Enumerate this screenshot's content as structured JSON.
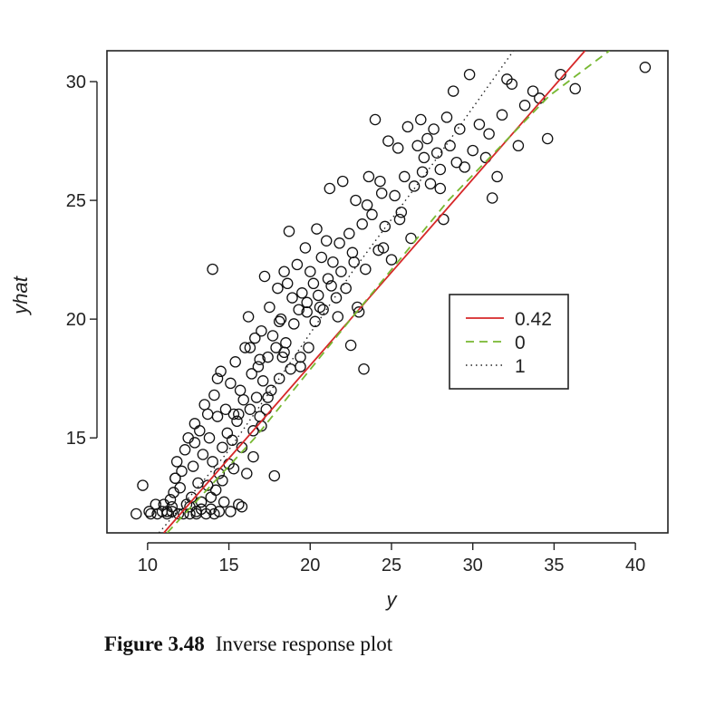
{
  "chart_data": {
    "type": "scatter",
    "title": "",
    "xlabel": "y",
    "ylabel": "yhat",
    "xlim": [
      7.5,
      42
    ],
    "ylim": [
      11,
      31.3
    ],
    "x_ticks": [
      10,
      15,
      20,
      25,
      30,
      35,
      40
    ],
    "y_ticks": [
      15,
      20,
      25,
      30
    ],
    "grid": false,
    "legend_position": "center-right",
    "point_style": "open-circle",
    "series": [
      {
        "type": "scatter",
        "points": [
          [
            9.3,
            11.8
          ],
          [
            9.7,
            13.0
          ],
          [
            10.2,
            11.8
          ],
          [
            10.5,
            12.2
          ],
          [
            10.6,
            11.8
          ],
          [
            10.9,
            11.9
          ],
          [
            11.0,
            12.2
          ],
          [
            11.2,
            11.8
          ],
          [
            11.4,
            12.4
          ],
          [
            11.5,
            11.9
          ],
          [
            11.6,
            12.7
          ],
          [
            11.7,
            13.3
          ],
          [
            11.8,
            14.0
          ],
          [
            11.9,
            11.8
          ],
          [
            12.0,
            12.9
          ],
          [
            12.1,
            13.6
          ],
          [
            12.3,
            14.5
          ],
          [
            12.4,
            12.2
          ],
          [
            12.5,
            15.0
          ],
          [
            12.6,
            11.8
          ],
          [
            12.7,
            12.5
          ],
          [
            12.8,
            13.8
          ],
          [
            12.9,
            14.8
          ],
          [
            13.0,
            11.9
          ],
          [
            13.1,
            13.1
          ],
          [
            13.2,
            15.3
          ],
          [
            13.3,
            12.3
          ],
          [
            13.4,
            14.3
          ],
          [
            13.5,
            16.4
          ],
          [
            13.6,
            11.8
          ],
          [
            13.7,
            13.0
          ],
          [
            13.8,
            15.0
          ],
          [
            13.9,
            12.0
          ],
          [
            14.0,
            14.0
          ],
          [
            14.1,
            16.8
          ],
          [
            14.2,
            12.8
          ],
          [
            14.3,
            15.9
          ],
          [
            14.4,
            13.5
          ],
          [
            14.5,
            17.8
          ],
          [
            14.6,
            14.6
          ],
          [
            14.7,
            12.3
          ],
          [
            14.8,
            16.2
          ],
          [
            14.9,
            15.2
          ],
          [
            15.0,
            13.9
          ],
          [
            15.1,
            17.3
          ],
          [
            15.2,
            14.9
          ],
          [
            15.3,
            16.0
          ],
          [
            15.4,
            18.2
          ],
          [
            15.5,
            15.7
          ],
          [
            15.6,
            12.2
          ],
          [
            15.7,
            17.0
          ],
          [
            15.8,
            14.6
          ],
          [
            15.9,
            16.6
          ],
          [
            16.0,
            18.8
          ],
          [
            16.1,
            13.5
          ],
          [
            16.2,
            20.1
          ],
          [
            16.3,
            16.2
          ],
          [
            16.4,
            17.7
          ],
          [
            16.5,
            15.3
          ],
          [
            16.6,
            19.2
          ],
          [
            16.7,
            16.7
          ],
          [
            16.8,
            18.0
          ],
          [
            16.9,
            15.9
          ],
          [
            17.0,
            19.5
          ],
          [
            17.1,
            17.4
          ],
          [
            17.2,
            21.8
          ],
          [
            17.3,
            16.2
          ],
          [
            17.4,
            18.4
          ],
          [
            17.5,
            20.5
          ],
          [
            17.6,
            17.0
          ],
          [
            17.7,
            19.3
          ],
          [
            17.8,
            13.4
          ],
          [
            17.9,
            18.8
          ],
          [
            18.0,
            21.3
          ],
          [
            18.1,
            17.5
          ],
          [
            18.2,
            20.0
          ],
          [
            18.3,
            18.4
          ],
          [
            18.4,
            22.0
          ],
          [
            18.5,
            19.0
          ],
          [
            18.6,
            21.5
          ],
          [
            18.7,
            23.7
          ],
          [
            18.8,
            17.9
          ],
          [
            18.9,
            20.9
          ],
          [
            19.0,
            19.8
          ],
          [
            19.2,
            22.3
          ],
          [
            19.3,
            20.4
          ],
          [
            19.4,
            18.4
          ],
          [
            19.5,
            21.1
          ],
          [
            19.7,
            23.0
          ],
          [
            19.8,
            20.7
          ],
          [
            19.9,
            18.8
          ],
          [
            20.0,
            22.0
          ],
          [
            20.2,
            21.5
          ],
          [
            20.3,
            19.9
          ],
          [
            20.4,
            23.8
          ],
          [
            20.5,
            21.0
          ],
          [
            20.7,
            22.6
          ],
          [
            20.8,
            20.4
          ],
          [
            21.0,
            23.3
          ],
          [
            21.1,
            21.7
          ],
          [
            21.2,
            25.5
          ],
          [
            21.4,
            22.4
          ],
          [
            21.6,
            20.9
          ],
          [
            21.8,
            23.2
          ],
          [
            21.9,
            22.0
          ],
          [
            22.0,
            25.8
          ],
          [
            22.2,
            21.3
          ],
          [
            22.4,
            23.6
          ],
          [
            22.5,
            18.9
          ],
          [
            22.6,
            22.8
          ],
          [
            22.8,
            25.0
          ],
          [
            23.0,
            20.3
          ],
          [
            23.2,
            24.0
          ],
          [
            23.3,
            17.9
          ],
          [
            23.4,
            22.1
          ],
          [
            23.6,
            26.0
          ],
          [
            23.8,
            24.4
          ],
          [
            24.0,
            28.4
          ],
          [
            24.2,
            22.9
          ],
          [
            24.4,
            25.3
          ],
          [
            24.6,
            23.9
          ],
          [
            24.8,
            27.5
          ],
          [
            25.0,
            22.5
          ],
          [
            25.2,
            25.2
          ],
          [
            25.4,
            27.2
          ],
          [
            25.6,
            24.5
          ],
          [
            25.8,
            26.0
          ],
          [
            26.0,
            28.1
          ],
          [
            26.2,
            23.4
          ],
          [
            26.4,
            25.6
          ],
          [
            26.6,
            27.3
          ],
          [
            26.8,
            28.4
          ],
          [
            27.0,
            26.8
          ],
          [
            27.2,
            27.6
          ],
          [
            27.4,
            25.7
          ],
          [
            27.6,
            28.0
          ],
          [
            27.8,
            27.0
          ],
          [
            28.0,
            26.3
          ],
          [
            28.2,
            24.2
          ],
          [
            28.4,
            28.5
          ],
          [
            28.6,
            27.3
          ],
          [
            28.8,
            29.6
          ],
          [
            29.0,
            26.6
          ],
          [
            29.2,
            28.0
          ],
          [
            29.5,
            26.4
          ],
          [
            29.8,
            30.3
          ],
          [
            30.0,
            27.1
          ],
          [
            30.4,
            28.2
          ],
          [
            30.8,
            26.8
          ],
          [
            31.0,
            27.8
          ],
          [
            31.2,
            25.1
          ],
          [
            31.5,
            26.0
          ],
          [
            31.8,
            28.6
          ],
          [
            32.1,
            30.1
          ],
          [
            32.4,
            29.9
          ],
          [
            32.8,
            27.3
          ],
          [
            33.2,
            29.0
          ],
          [
            33.7,
            29.6
          ],
          [
            34.1,
            29.3
          ],
          [
            34.6,
            27.6
          ],
          [
            35.4,
            30.3
          ],
          [
            36.3,
            29.7
          ],
          [
            40.6,
            30.6
          ],
          [
            13.0,
            11.8
          ],
          [
            12.2,
            11.8
          ],
          [
            14.1,
            11.8
          ],
          [
            10.1,
            11.9
          ],
          [
            11.5,
            12.1
          ],
          [
            13.3,
            12.0
          ],
          [
            14.4,
            11.9
          ],
          [
            12.6,
            12.1
          ],
          [
            15.1,
            11.9
          ],
          [
            13.9,
            12.5
          ],
          [
            15.8,
            12.1
          ],
          [
            11.7,
            13.3
          ],
          [
            12.9,
            15.6
          ],
          [
            14.6,
            13.2
          ],
          [
            13.7,
            16.0
          ],
          [
            11.2,
            11.9
          ],
          [
            16.5,
            14.2
          ],
          [
            17.0,
            15.5
          ],
          [
            18.4,
            18.6
          ],
          [
            19.8,
            20.3
          ],
          [
            21.3,
            21.4
          ],
          [
            22.7,
            22.4
          ],
          [
            23.5,
            24.8
          ],
          [
            24.5,
            23.0
          ],
          [
            25.5,
            24.2
          ],
          [
            26.9,
            26.2
          ],
          [
            28.0,
            25.5
          ],
          [
            14.3,
            17.5
          ],
          [
            15.6,
            16.0
          ],
          [
            16.9,
            18.3
          ],
          [
            18.1,
            19.9
          ],
          [
            19.4,
            18.0
          ],
          [
            20.6,
            20.5
          ],
          [
            21.7,
            20.1
          ],
          [
            22.9,
            20.5
          ],
          [
            24.3,
            25.8
          ],
          [
            16.3,
            18.8
          ],
          [
            17.4,
            16.7
          ],
          [
            15.3,
            13.7
          ],
          [
            14.0,
            22.1
          ]
        ]
      }
    ],
    "lines": [
      {
        "name": "0.42",
        "style": "solid",
        "color": "#d62728",
        "points": [
          [
            11.0,
            11.0
          ],
          [
            36.9,
            31.3
          ]
        ]
      },
      {
        "name": "0",
        "style": "dashed",
        "color": "#77b831",
        "points": [
          [
            11.2,
            11.0
          ],
          [
            16.6,
            15.0
          ],
          [
            22.5,
            20.0
          ],
          [
            28.5,
            25.0
          ],
          [
            34.7,
            29.4
          ],
          [
            38.4,
            31.3
          ]
        ]
      },
      {
        "name": "1",
        "style": "dotted",
        "color": "#222222",
        "points": [
          [
            10.7,
            11.0
          ],
          [
            14.8,
            14.3
          ],
          [
            18.3,
            17.7
          ],
          [
            22.6,
            22.0
          ],
          [
            27.5,
            26.5
          ],
          [
            32.5,
            31.3
          ]
        ]
      }
    ],
    "legend": [
      {
        "label": "0.42",
        "style": "solid",
        "color": "#d62728"
      },
      {
        "label": "0",
        "style": "dashed",
        "color": "#77b831"
      },
      {
        "label": "1",
        "style": "dotted",
        "color": "#222222"
      }
    ]
  },
  "caption": {
    "label": "Figure 3.48",
    "text": "Inverse response plot"
  }
}
